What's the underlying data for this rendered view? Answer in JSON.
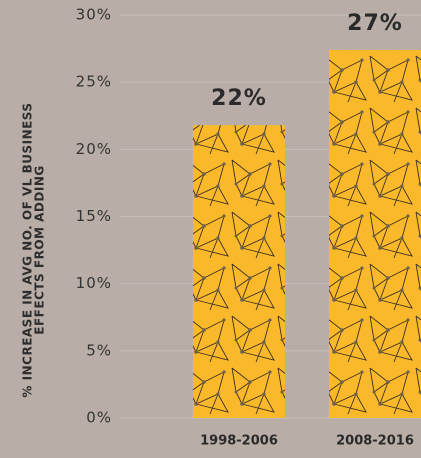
{
  "chart_data": {
    "type": "bar",
    "ylabel_lines": [
      "% INCREASE IN AVG NO. OF VL BUSINESS",
      "EFFECTS FROM ADDING"
    ],
    "categories": [
      "1998-2006",
      "2008-2016"
    ],
    "values": [
      21.8,
      27.4
    ],
    "value_labels": [
      "22%",
      "27%"
    ],
    "color": "#f9b92b",
    "ylim": [
      0,
      30
    ],
    "yticks": [
      {
        "value": 0,
        "label": "0%"
      },
      {
        "value": 5,
        "label": "5%"
      },
      {
        "value": 10,
        "label": "10%"
      },
      {
        "value": 15,
        "label": "15%"
      },
      {
        "value": 20,
        "label": "20%"
      },
      {
        "value": 25,
        "label": "25%"
      },
      {
        "value": 30,
        "label": "30%"
      }
    ],
    "grid": true
  }
}
